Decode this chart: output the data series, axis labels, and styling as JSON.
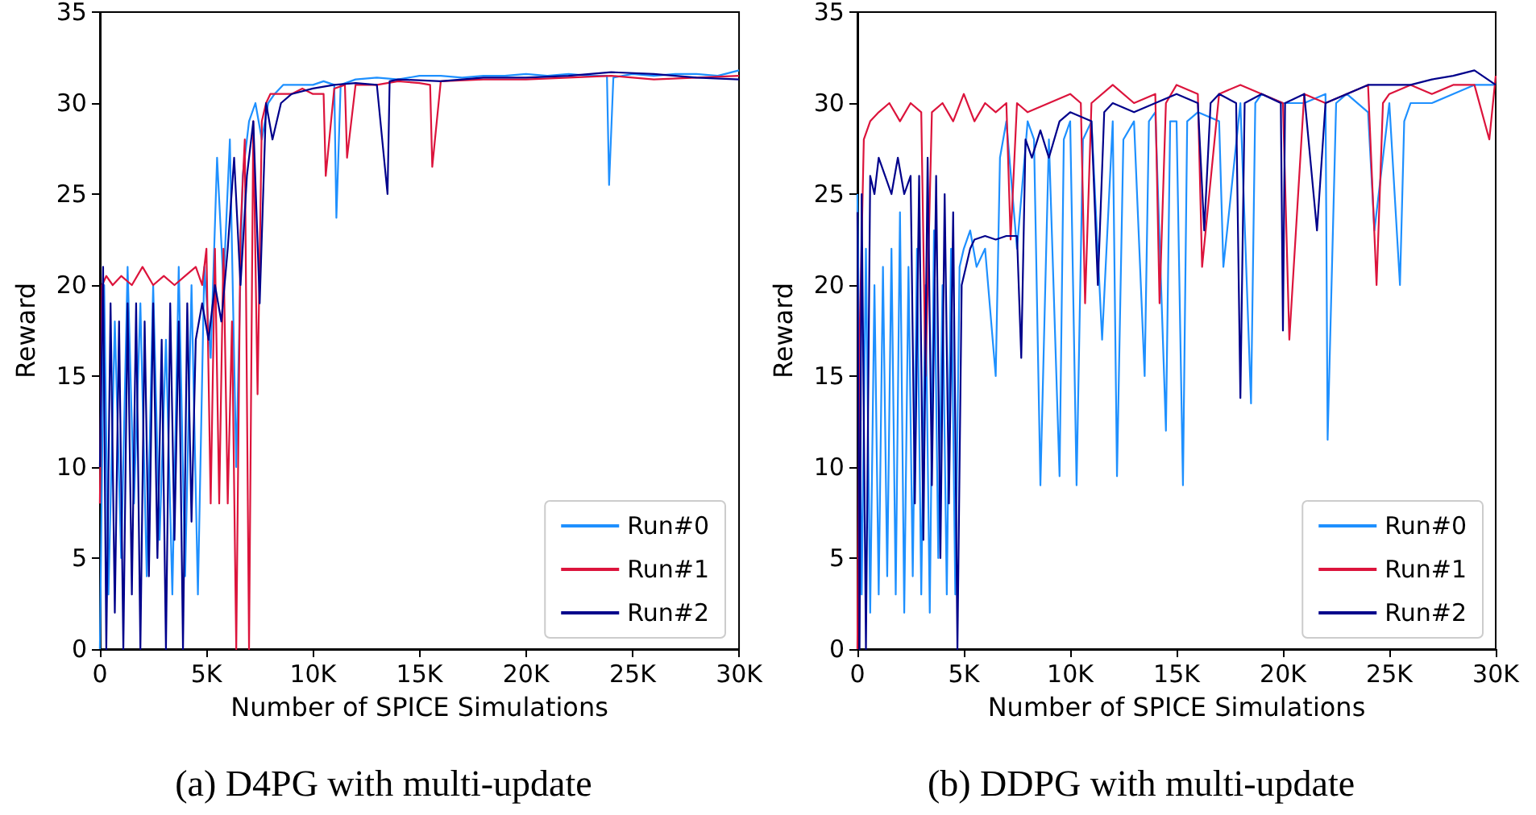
{
  "chart_data": [
    {
      "type": "line",
      "title": "(a) D4PG with multi-update",
      "xlabel": "Number of SPICE Simulations",
      "ylabel": "Reward",
      "xlim": [
        0,
        30000
      ],
      "ylim": [
        0,
        35
      ],
      "xticks": [
        0,
        {
          "value": 5000,
          "label": "5K"
        },
        {
          "value": 10000,
          "label": "10K"
        },
        {
          "value": 15000,
          "label": "15K"
        },
        {
          "value": 20000,
          "label": "20K"
        },
        {
          "value": 25000,
          "label": "25K"
        },
        {
          "value": 30000,
          "label": "30K"
        }
      ],
      "yticks": [
        0,
        5,
        10,
        15,
        20,
        25,
        30,
        35
      ],
      "grid": false,
      "legend": "bottom right",
      "series": [
        {
          "name": "Run#0",
          "color": "#1e90ff",
          "x": [
            0,
            200,
            400,
            700,
            1000,
            1300,
            1600,
            1900,
            2200,
            2500,
            2800,
            3100,
            3400,
            3700,
            4000,
            4300,
            4600,
            4900,
            5200,
            5500,
            5800,
            6100,
            6400,
            6700,
            7000,
            7300,
            7600,
            7900,
            8200,
            8600,
            9000,
            9500,
            10000,
            10500,
            11000,
            11100,
            11300,
            12000,
            13000,
            14000,
            15000,
            16000,
            17000,
            18000,
            19000,
            20000,
            21000,
            22000,
            23000,
            23800,
            23900,
            24100,
            25000,
            26000,
            27000,
            28000,
            29000,
            30000
          ],
          "values": [
            0,
            20,
            3,
            18,
            5,
            21,
            8,
            19,
            4,
            20,
            6,
            17,
            3,
            21,
            4,
            20,
            3,
            21,
            16,
            27,
            20,
            28,
            10,
            26,
            29,
            30,
            28,
            30,
            30.5,
            31,
            31,
            31,
            31,
            31.2,
            31,
            23.7,
            31,
            31.3,
            31.4,
            31.3,
            31.5,
            31.5,
            31.4,
            31.5,
            31.5,
            31.6,
            31.5,
            31.6,
            31.5,
            31.5,
            25.5,
            31.4,
            31.6,
            31.5,
            31.6,
            31.6,
            31.5,
            31.8
          ]
        },
        {
          "name": "Run#1",
          "color": "#dc143c",
          "x": [
            0,
            100,
            300,
            600,
            1000,
            1500,
            2000,
            2500,
            3000,
            3500,
            4000,
            4500,
            4800,
            5000,
            5200,
            5400,
            5600,
            5800,
            6000,
            6200,
            6400,
            6600,
            6800,
            7000,
            7200,
            7400,
            7600,
            7800,
            8000,
            8500,
            9000,
            9500,
            10000,
            10500,
            10600,
            11000,
            11500,
            11600,
            12000,
            13000,
            14000,
            15000,
            15500,
            15600,
            16000,
            18000,
            20000,
            22000,
            24000,
            26000,
            28000,
            30000
          ],
          "values": [
            8,
            20,
            20.5,
            20,
            20.5,
            20,
            21,
            20,
            20.5,
            20,
            20.5,
            21,
            20,
            22,
            8,
            22,
            8,
            22,
            8,
            18,
            0,
            23,
            28,
            0,
            29,
            14,
            29,
            30,
            30.5,
            30.5,
            30.5,
            30.8,
            30.5,
            30.5,
            26,
            30.8,
            31,
            27,
            31,
            31,
            31.2,
            31.1,
            31,
            26.5,
            31.2,
            31.3,
            31.3,
            31.4,
            31.5,
            31.3,
            31.4,
            31.5
          ]
        },
        {
          "name": "Run#2",
          "color": "#00008b",
          "x": [
            0,
            150,
            300,
            500,
            700,
            900,
            1100,
            1300,
            1500,
            1700,
            1900,
            2100,
            2300,
            2500,
            2700,
            2900,
            3100,
            3300,
            3500,
            3700,
            3900,
            4100,
            4300,
            4500,
            4800,
            5100,
            5400,
            5700,
            6000,
            6300,
            6600,
            6900,
            7200,
            7500,
            7800,
            8100,
            8500,
            9000,
            10000,
            11000,
            12000,
            13000,
            13500,
            13600,
            14000,
            16000,
            18000,
            20000,
            22000,
            24000,
            26000,
            28000,
            30000
          ],
          "values": [
            10,
            21,
            0,
            19,
            2,
            18,
            0,
            19,
            3,
            19,
            0,
            18,
            4,
            19,
            5,
            17,
            0,
            19,
            6,
            18,
            0,
            19,
            7,
            17,
            19,
            17,
            20,
            18,
            22,
            27,
            20,
            26,
            29,
            19,
            30,
            28,
            30,
            30.5,
            30.8,
            31,
            31.1,
            31,
            25,
            31.2,
            31.3,
            31.2,
            31.4,
            31.4,
            31.5,
            31.7,
            31.6,
            31.4,
            31.3
          ]
        }
      ]
    },
    {
      "type": "line",
      "title": "(b) DDPG with multi-update",
      "xlabel": "Number of SPICE Simulations",
      "ylabel": "Reward",
      "xlim": [
        0,
        30000
      ],
      "ylim": [
        0,
        35
      ],
      "xticks": [
        0,
        {
          "value": 5000,
          "label": "5K"
        },
        {
          "value": 10000,
          "label": "10K"
        },
        {
          "value": 15000,
          "label": "15K"
        },
        {
          "value": 20000,
          "label": "20K"
        },
        {
          "value": 25000,
          "label": "25K"
        },
        {
          "value": 30000,
          "label": "30K"
        }
      ],
      "yticks": [
        0,
        5,
        10,
        15,
        20,
        25,
        30,
        35
      ],
      "grid": false,
      "legend": "bottom right",
      "series": [
        {
          "name": "Run#0",
          "color": "#1e90ff",
          "x": [
            0,
            200,
            400,
            600,
            800,
            1000,
            1200,
            1400,
            1600,
            1800,
            2000,
            2200,
            2400,
            2600,
            2800,
            3000,
            3200,
            3400,
            3600,
            3800,
            4000,
            4200,
            4400,
            4600,
            4800,
            5000,
            5300,
            5600,
            6000,
            6500,
            6700,
            7000,
            7500,
            8000,
            8300,
            8600,
            9000,
            9500,
            9700,
            10000,
            10300,
            10600,
            11000,
            11500,
            12000,
            12200,
            12500,
            13000,
            13500,
            13700,
            14000,
            14500,
            14700,
            15000,
            15300,
            15500,
            16000,
            17000,
            17200,
            18000,
            18500,
            18700,
            19000,
            20000,
            21000,
            22000,
            22100,
            22500,
            23000,
            24000,
            24300,
            25000,
            25500,
            25700,
            26000,
            27000,
            28000,
            29000,
            30000
          ],
          "values": [
            25,
            3,
            22,
            2,
            20,
            3,
            21,
            4,
            22,
            3,
            24,
            2,
            21,
            4,
            22,
            3,
            20,
            2,
            23,
            5,
            20,
            3,
            22,
            3,
            21,
            22,
            23,
            21,
            22,
            15,
            27,
            29,
            22,
            29,
            28,
            9,
            28,
            9.5,
            28,
            29,
            9,
            28,
            29,
            17,
            29,
            9.5,
            28,
            29,
            15,
            29,
            29.5,
            12,
            29,
            29,
            9,
            29,
            29.5,
            29,
            21,
            30,
            13.5,
            30,
            30.5,
            30,
            30,
            30.5,
            11.5,
            30,
            30.5,
            29.5,
            23,
            30,
            20,
            29,
            30,
            30,
            30.5,
            31,
            31
          ]
        },
        {
          "name": "Run#1",
          "color": "#dc143c",
          "x": [
            0,
            100,
            300,
            600,
            1000,
            1500,
            2000,
            2500,
            3000,
            3200,
            3500,
            4000,
            4500,
            5000,
            5500,
            6000,
            6500,
            7000,
            7200,
            7500,
            8000,
            9000,
            10000,
            10500,
            10700,
            11000,
            12000,
            13000,
            14000,
            14200,
            14500,
            15000,
            16000,
            16200,
            17000,
            18000,
            19000,
            20000,
            20300,
            21000,
            22000,
            23000,
            24000,
            24400,
            24700,
            25000,
            26000,
            27000,
            28000,
            29000,
            29700,
            30000
          ],
          "values": [
            0,
            17,
            28,
            29,
            29.5,
            30,
            29,
            30,
            29.5,
            15,
            29.5,
            30,
            29,
            30.5,
            29,
            30,
            29.5,
            30,
            22.5,
            30,
            29.5,
            30,
            30.5,
            30,
            19,
            30,
            31,
            30,
            30.5,
            19,
            30,
            31,
            30.5,
            21,
            30.5,
            31,
            30.5,
            30,
            17,
            30.5,
            30,
            30.5,
            31,
            20,
            30,
            30.5,
            31,
            30.5,
            31,
            31,
            28,
            31.5
          ]
        },
        {
          "name": "Run#2",
          "color": "#00008b",
          "x": [
            0,
            100,
            200,
            400,
            600,
            800,
            1000,
            1300,
            1600,
            1900,
            2200,
            2500,
            2700,
            2900,
            3100,
            3300,
            3500,
            3700,
            3900,
            4100,
            4300,
            4500,
            4700,
            4900,
            5100,
            5300,
            5500,
            6000,
            6500,
            7000,
            7500,
            7700,
            7900,
            8200,
            8600,
            9000,
            9500,
            10000,
            11000,
            11300,
            11600,
            12000,
            13000,
            14000,
            15000,
            16000,
            16300,
            16600,
            17000,
            17800,
            18000,
            18200,
            19000,
            19900,
            20000,
            20100,
            21000,
            21600,
            22000,
            23000,
            24000,
            25000,
            26000,
            27000,
            28000,
            29000,
            30000
          ],
          "values": [
            24,
            0,
            25,
            0,
            26,
            25,
            27,
            26,
            25,
            27,
            25,
            26,
            8,
            26,
            6,
            27,
            9,
            26,
            5,
            25,
            8,
            24,
            0,
            20,
            21,
            22,
            22.5,
            22.7,
            22.5,
            22.7,
            22.7,
            16,
            28,
            27,
            28.5,
            27,
            29,
            29.5,
            29,
            20,
            29.5,
            30,
            29.5,
            30,
            30.5,
            30,
            23,
            30,
            30.5,
            30,
            13.8,
            30,
            30.5,
            30,
            17.5,
            30,
            30.5,
            23,
            30,
            30.5,
            31,
            31,
            31,
            31.3,
            31.5,
            31.8,
            31
          ]
        }
      ]
    }
  ]
}
